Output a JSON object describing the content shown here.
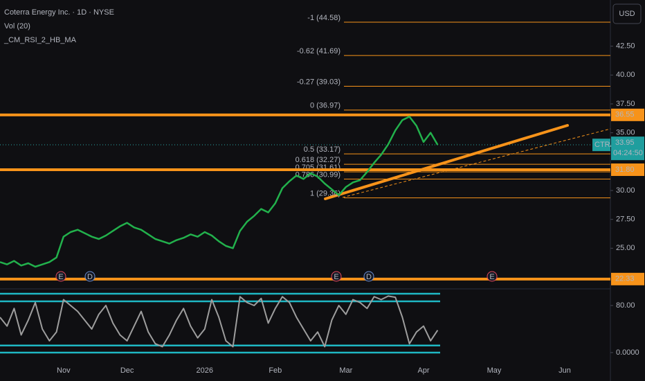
{
  "chart_data": [
    {
      "type": "line",
      "title": "Coterra Energy Inc. · 1D · NYSE",
      "subtitle": "Vol (20)",
      "indicator": "_CM_RSI_2_HB_MA",
      "currency": "USD",
      "symbol": "CTRA",
      "countdown": "04:24:50",
      "color": "#22b14c",
      "categories": [
        null,
        null,
        null,
        null,
        null,
        null,
        null,
        null,
        null,
        "Nov",
        null,
        null,
        null,
        null,
        null,
        null,
        null,
        null,
        "Dec",
        null,
        null,
        null,
        null,
        null,
        null,
        null,
        null,
        null,
        null,
        "2026",
        null,
        null,
        null,
        null,
        null,
        null,
        null,
        null,
        null,
        "Feb",
        null,
        null,
        null,
        null,
        null,
        null,
        null,
        null,
        null,
        "Mar",
        null,
        null,
        null,
        null,
        null,
        null,
        null,
        null,
        null,
        null,
        "Apr",
        null,
        null,
        null,
        null,
        null,
        null,
        null,
        null,
        null,
        "May",
        null,
        null,
        null,
        null,
        null,
        null,
        null,
        null,
        null,
        "Jun",
        null,
        null,
        null,
        null,
        null
      ],
      "values": [
        23.8,
        23.6,
        23.9,
        23.5,
        23.7,
        23.4,
        23.6,
        23.8,
        24.2,
        26.0,
        26.4,
        26.6,
        26.3,
        26.0,
        25.8,
        26.1,
        26.5,
        26.9,
        27.2,
        26.8,
        26.6,
        26.2,
        25.8,
        25.6,
        25.4,
        25.7,
        25.9,
        26.2,
        26.0,
        26.4,
        26.1,
        25.6,
        25.2,
        25.0,
        26.5,
        27.3,
        27.8,
        28.4,
        28.1,
        28.9,
        30.2,
        30.8,
        31.3,
        31.0,
        31.5,
        31.2,
        30.6,
        30.1,
        29.6,
        30.3,
        30.7,
        30.9,
        31.6,
        32.4,
        33.1,
        34.0,
        35.2,
        36.1,
        36.4,
        35.6,
        34.2,
        35.0,
        33.95,
        null,
        null,
        null,
        null,
        null,
        null,
        null,
        null,
        null,
        null,
        null,
        null,
        null,
        null,
        null,
        null,
        null,
        null,
        null,
        null,
        null,
        null,
        null
      ],
      "last_value": {
        "value": 33.95,
        "label": "33.95"
      },
      "ylim": [
        21.6,
        46.5
      ],
      "yticks": [
        {
          "value": 25,
          "label": "25.00"
        },
        {
          "value": 27.5,
          "label": "27.50"
        },
        {
          "value": 30,
          "label": "30.00"
        },
        {
          "value": 35,
          "label": "35.00"
        },
        {
          "value": 37.5,
          "label": "37.50"
        },
        {
          "value": 40,
          "label": "40.00"
        },
        {
          "value": 42.5,
          "label": "42.50"
        }
      ],
      "levels": [
        {
          "value": 36.55,
          "label": "36.55"
        },
        {
          "value": 31.8,
          "label": "31.80"
        },
        {
          "value": 22.33,
          "label": "22.33"
        }
      ],
      "level_color": "#f7931a",
      "fib_levels": [
        {
          "value": 44.58,
          "label": "-1 (44.58)"
        },
        {
          "value": 41.69,
          "label": "-0.62 (41.69)"
        },
        {
          "value": 39.03,
          "label": "-0.27 (39.03)"
        },
        {
          "value": 36.97,
          "label": "0 (36.97)"
        },
        {
          "value": 33.17,
          "label": "0.5 (33.17)"
        },
        {
          "value": 32.27,
          "label": "0.618 (32.27)"
        },
        {
          "value": 31.61,
          "label": "0.705 (31.61)"
        },
        {
          "value": 30.99,
          "label": "0.786 (30.99)"
        },
        {
          "value": 29.36,
          "label": "1 (29.36)"
        }
      ],
      "events": [
        "E",
        "D",
        "E",
        "D",
        "E"
      ]
    },
    {
      "type": "line",
      "color": "#9e9e9e",
      "values": [
        60,
        45,
        75,
        30,
        55,
        85,
        40,
        20,
        35,
        90,
        80,
        70,
        55,
        40,
        65,
        80,
        50,
        30,
        20,
        45,
        70,
        35,
        15,
        10,
        30,
        55,
        75,
        45,
        25,
        40,
        90,
        60,
        20,
        10,
        95,
        85,
        80,
        92,
        50,
        75,
        95,
        85,
        60,
        40,
        20,
        35,
        10,
        55,
        80,
        65,
        90,
        85,
        75,
        95,
        90,
        96,
        94,
        60,
        15,
        35,
        45,
        20,
        38
      ],
      "ylim": [
        -36.5,
        104.7
      ],
      "yticks": [
        {
          "value": 0,
          "label": "0.0000"
        },
        {
          "value": 80,
          "label": "80.00"
        }
      ],
      "band_levels": [
        100,
        87,
        12,
        0
      ],
      "band_color": "#1fb8c4"
    }
  ]
}
